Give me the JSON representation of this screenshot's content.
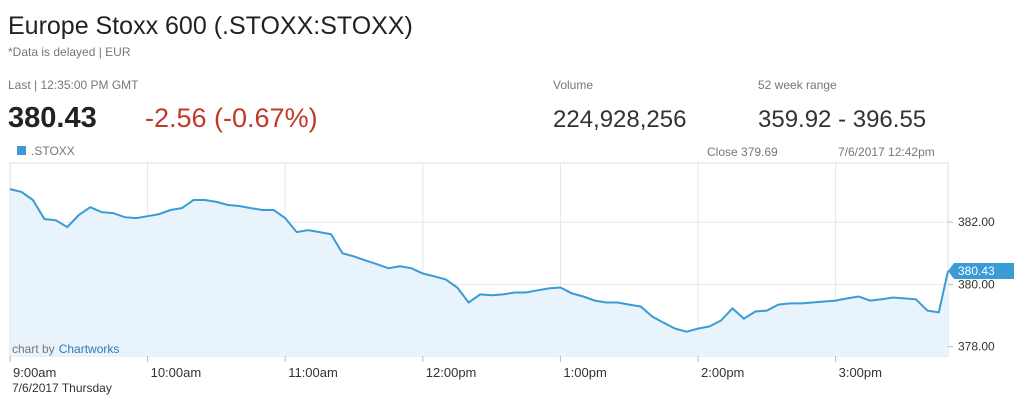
{
  "header": {
    "title": "Europe Stoxx 600 (.STOXX:STOXX)",
    "subtitle": "*Data is delayed | EUR",
    "last_label": "Last | 12:35:00 PM GMT",
    "last_price": "380.43",
    "change": "-2.56 (-0.67%)",
    "volume_label": "Volume",
    "volume": "224,928,256",
    "range_label": "52 week range",
    "range": "359.92 - 396.55"
  },
  "chart_data": {
    "type": "line",
    "close_label": "Close 379.69",
    "timestamp": "7/6/2017 12:42pm",
    "date_label": "7/6/2017 Thursday",
    "credit": "chart by",
    "credit_link": "Chartworks",
    "x": [
      "09:00",
      "09:05",
      "09:10",
      "09:15",
      "09:20",
      "09:25",
      "09:30",
      "09:35",
      "09:40",
      "09:45",
      "09:50",
      "09:55",
      "10:00",
      "10:05",
      "10:10",
      "10:15",
      "10:20",
      "10:25",
      "10:30",
      "10:35",
      "10:40",
      "10:45",
      "10:50",
      "10:55",
      "11:00",
      "11:05",
      "11:10",
      "11:15",
      "11:20",
      "11:25",
      "11:30",
      "11:35",
      "11:40",
      "11:45",
      "11:50",
      "11:55",
      "12:00",
      "12:05",
      "12:10",
      "12:15",
      "12:20",
      "12:25",
      "12:30",
      "12:35",
      "12:40",
      "12:45",
      "12:50",
      "12:55",
      "13:00",
      "13:05",
      "13:10",
      "13:15",
      "13:20",
      "13:25",
      "13:30",
      "13:35",
      "13:40",
      "13:45",
      "13:50",
      "13:55",
      "14:00",
      "14:05",
      "14:10",
      "14:15",
      "14:20",
      "14:25",
      "14:30",
      "14:35",
      "14:40",
      "14:45",
      "14:50",
      "14:55",
      "15:00",
      "15:05",
      "15:10",
      "15:15",
      "15:20",
      "15:25",
      "15:30",
      "15:35",
      "15:40",
      "15:45",
      "15:49"
    ],
    "series": [
      {
        "name": ".STOXX",
        "color": "#3a9bd5",
        "values": [
          383.06,
          382.97,
          382.71,
          382.1,
          382.06,
          381.84,
          382.23,
          382.48,
          382.32,
          382.29,
          382.16,
          382.13,
          382.19,
          382.26,
          382.39,
          382.45,
          382.71,
          382.71,
          382.65,
          382.55,
          382.52,
          382.45,
          382.39,
          382.39,
          382.13,
          381.68,
          381.74,
          381.68,
          381.61,
          381.0,
          380.9,
          380.77,
          380.65,
          380.52,
          380.58,
          380.52,
          380.35,
          380.26,
          380.16,
          379.9,
          379.42,
          379.68,
          379.65,
          379.68,
          379.74,
          379.74,
          379.81,
          379.87,
          379.9,
          379.71,
          379.61,
          379.48,
          379.42,
          379.42,
          379.35,
          379.29,
          378.97,
          378.77,
          378.58,
          378.48,
          378.58,
          378.65,
          378.84,
          379.23,
          378.9,
          379.13,
          379.16,
          379.35,
          379.39,
          379.39,
          379.42,
          379.45,
          379.48,
          379.55,
          379.61,
          379.48,
          379.52,
          379.58,
          379.55,
          379.52,
          379.16,
          379.1,
          380.43
        ]
      }
    ],
    "xlim": [
      "09:00",
      "15:49"
    ],
    "xticks": [
      {
        "value": "09:00",
        "label": "9:00am"
      },
      {
        "value": "10:00",
        "label": "10:00am"
      },
      {
        "value": "11:00",
        "label": "11:00am"
      },
      {
        "value": "12:00",
        "label": "12:00pm"
      },
      {
        "value": "13:00",
        "label": "1:00pm"
      },
      {
        "value": "14:00",
        "label": "2:00pm"
      },
      {
        "value": "15:00",
        "label": "3:00pm"
      }
    ],
    "ylim": [
      377.7,
      383.9
    ],
    "yticks": [
      {
        "value": 378,
        "label": "378.00"
      },
      {
        "value": 380,
        "label": "380.00"
      },
      {
        "value": 382,
        "label": "382.00"
      }
    ],
    "grid": true
  }
}
